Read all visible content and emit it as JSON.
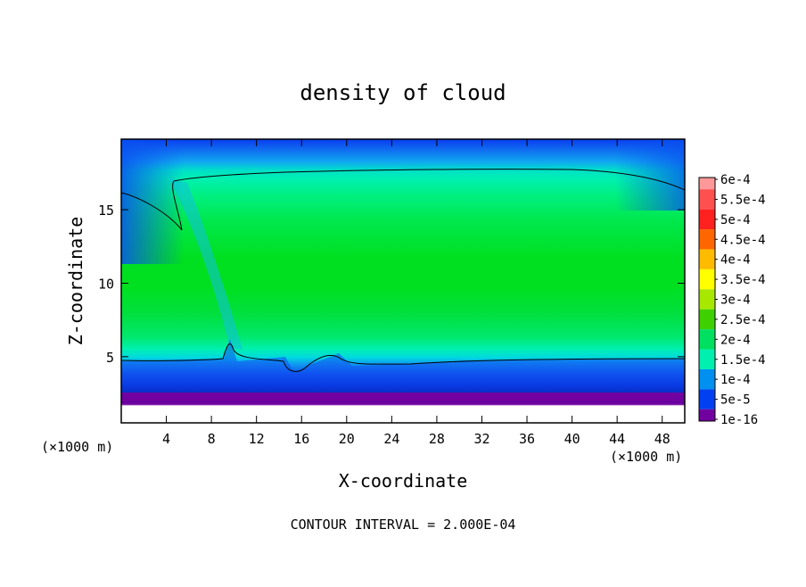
{
  "chart_data": {
    "type": "heatmap",
    "title": "density of cloud",
    "xlabel": "X-coordinate",
    "ylabel": "Z-coordinate",
    "x_unit_label": "(×1000 m)",
    "x_unit_label_right": "(×1000 m)",
    "footer": "CONTOUR INTERVAL = 2.000E-04",
    "xlim": [
      0,
      50
    ],
    "ylim": [
      0.5,
      19.8
    ],
    "x_ticks": [
      4,
      8,
      12,
      16,
      20,
      24,
      28,
      32,
      36,
      40,
      44,
      48
    ],
    "y_ticks": [
      5,
      10,
      15
    ],
    "colorbar": {
      "labels": [
        "6e-4",
        "5.5e-4",
        "5e-4",
        "4.5e-4",
        "4e-4",
        "3.5e-4",
        "3e-4",
        "2.5e-4",
        "2e-4",
        "1.5e-4",
        "1e-4",
        "5e-5",
        "1e-16"
      ],
      "colors": [
        "#ff9999",
        "#ff5050",
        "#ff2020",
        "#ff6600",
        "#ffbb00",
        "#ffff00",
        "#a8e800",
        "#3fd000",
        "#00e060",
        "#00f0b0",
        "#0090f0",
        "#0040f0",
        "#7000a0"
      ]
    },
    "contour_level": 0.0002,
    "field_description_values": {
      "cloud_base_z": 1.5,
      "contour_bottom_z": 4.4,
      "contour_top_z": 17.7
    }
  }
}
